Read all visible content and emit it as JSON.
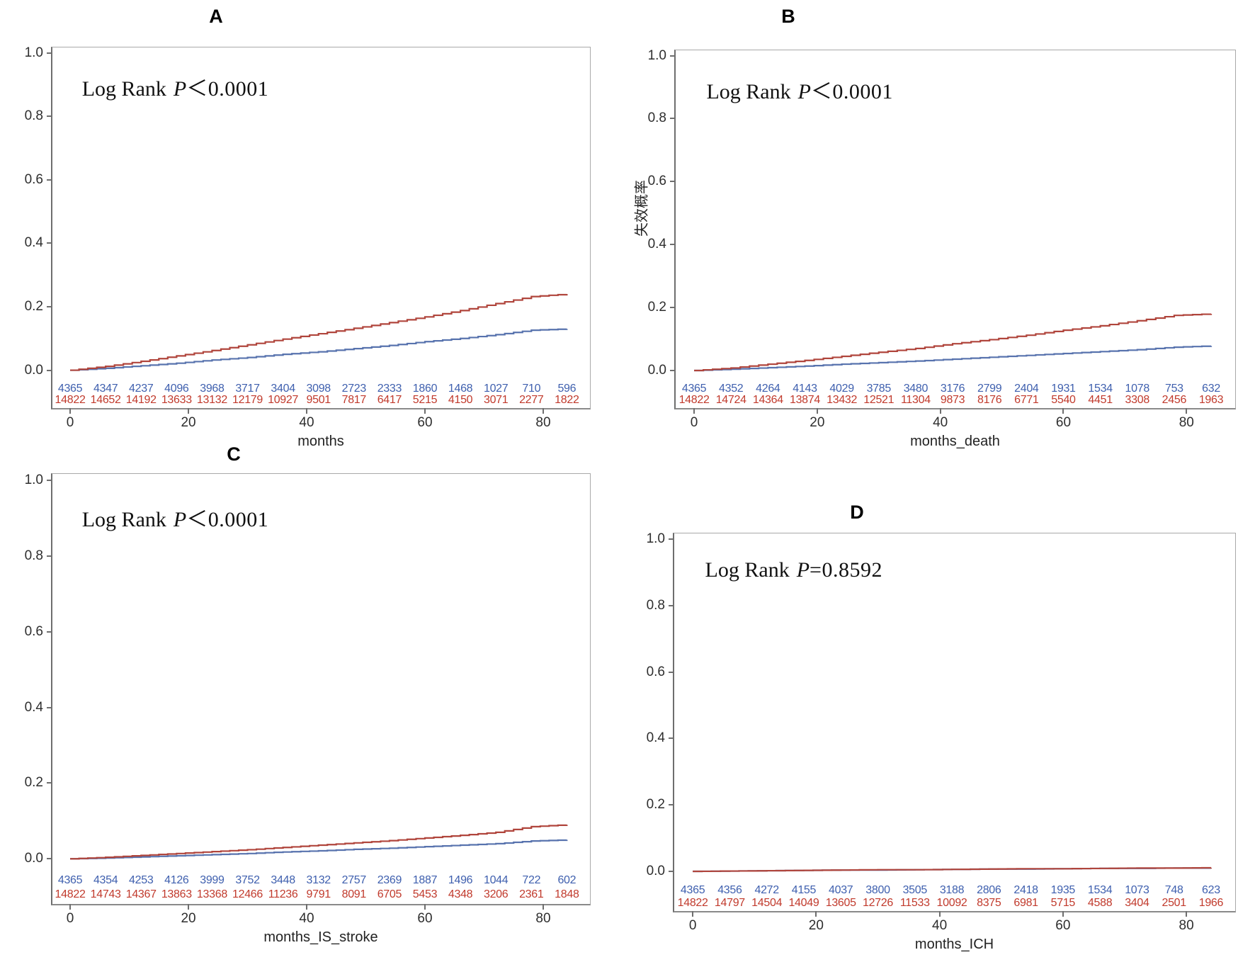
{
  "figure": {
    "background": "#ffffff",
    "colors": {
      "curve_blue": "#5873AE",
      "curve_red": "#B0453C",
      "risk_text_blue": "#3E5FAE",
      "risk_text_red": "#C13A2C",
      "frame_border": "#a9a9a9",
      "axis_line": "#6e6e6e",
      "tick_text": "#2e2e2e"
    }
  },
  "chart_data": [
    {
      "type": "step_line",
      "title": "A",
      "logrank_prefix": "Log Rank",
      "logrank_p": "P",
      "logrank_value": "＜0.0001",
      "xlabel": "months",
      "ylabel": "",
      "yticks": [
        "1.0",
        "0.8",
        "0.6",
        "0.4",
        "0.2",
        "0.0"
      ],
      "xticks": [
        0,
        20,
        40,
        60,
        80
      ],
      "ylim": [
        0,
        1
      ],
      "xlim": [
        0,
        88
      ],
      "grid": false,
      "legend": "none",
      "risk_months": [
        0,
        6,
        12,
        18,
        24,
        30,
        36,
        42,
        48,
        54,
        60,
        66,
        72,
        78,
        84
      ],
      "risk_table": {
        "blue": [
          "4365",
          "4347",
          "4237",
          "4096",
          "3968",
          "3717",
          "3404",
          "3098",
          "2723",
          "2333",
          "1860",
          "1468",
          "1027",
          "710",
          "596"
        ],
        "red": [
          "14822",
          "14652",
          "14192",
          "13633",
          "13132",
          "12179",
          "10927",
          "9501",
          "7817",
          "6417",
          "5215",
          "4150",
          "3071",
          "2277",
          "1822"
        ]
      },
      "series": [
        {
          "name": "blue-line",
          "color": "#5873AE",
          "values": [
            0,
            0.006,
            0.014,
            0.022,
            0.032,
            0.04,
            0.05,
            0.058,
            0.068,
            0.078,
            0.09,
            0.1,
            0.112,
            0.126,
            0.13
          ]
        },
        {
          "name": "red-line",
          "color": "#B0453C",
          "values": [
            0,
            0.012,
            0.028,
            0.045,
            0.062,
            0.08,
            0.098,
            0.115,
            0.132,
            0.15,
            0.168,
            0.188,
            0.21,
            0.232,
            0.24
          ]
        }
      ]
    },
    {
      "type": "step_line",
      "title": "B",
      "logrank_prefix": "Log Rank",
      "logrank_p": "P",
      "logrank_value": "＜0.0001",
      "xlabel": "months_death",
      "ylabel": "失效概率",
      "yticks": [
        "1.0",
        "0.8",
        "0.6",
        "0.4",
        "0.2",
        "0.0"
      ],
      "xticks": [
        0,
        20,
        40,
        60,
        80
      ],
      "ylim": [
        0,
        1
      ],
      "xlim": [
        0,
        88
      ],
      "grid": false,
      "legend": "none",
      "risk_months": [
        0,
        6,
        12,
        18,
        24,
        30,
        36,
        42,
        48,
        54,
        60,
        66,
        72,
        78,
        84
      ],
      "risk_table": {
        "blue": [
          "4365",
          "4352",
          "4264",
          "4143",
          "4029",
          "3785",
          "3480",
          "3176",
          "2799",
          "2404",
          "1931",
          "1534",
          "1078",
          "753",
          "632"
        ],
        "red": [
          "14822",
          "14724",
          "14364",
          "13874",
          "13432",
          "12521",
          "11304",
          "9873",
          "8176",
          "6771",
          "5540",
          "4451",
          "3308",
          "2456",
          "1963"
        ]
      },
      "series": [
        {
          "name": "blue-line",
          "color": "#5873AE",
          "values": [
            0,
            0.004,
            0.009,
            0.014,
            0.02,
            0.025,
            0.03,
            0.036,
            0.042,
            0.048,
            0.054,
            0.06,
            0.066,
            0.074,
            0.078
          ]
        },
        {
          "name": "red-line",
          "color": "#B0453C",
          "values": [
            0,
            0.008,
            0.02,
            0.032,
            0.045,
            0.058,
            0.07,
            0.085,
            0.098,
            0.112,
            0.128,
            0.142,
            0.158,
            0.175,
            0.18
          ]
        }
      ]
    },
    {
      "type": "step_line",
      "title": "C",
      "logrank_prefix": "Log Rank",
      "logrank_p": "P",
      "logrank_value": "＜0.0001",
      "xlabel": "months_IS_stroke",
      "ylabel": "",
      "yticks": [
        "1.0",
        "0.8",
        "0.6",
        "0.4",
        "0.2",
        "0.0"
      ],
      "xticks": [
        0,
        20,
        40,
        60,
        80
      ],
      "ylim": [
        0,
        1
      ],
      "xlim": [
        0,
        88
      ],
      "grid": false,
      "legend": "none",
      "risk_months": [
        0,
        6,
        12,
        18,
        24,
        30,
        36,
        42,
        48,
        54,
        60,
        66,
        72,
        78,
        84
      ],
      "risk_table": {
        "blue": [
          "4365",
          "4354",
          "4253",
          "4126",
          "3999",
          "3752",
          "3448",
          "3132",
          "2757",
          "2369",
          "1887",
          "1496",
          "1044",
          "722",
          "602"
        ],
        "red": [
          "14822",
          "14743",
          "14367",
          "13863",
          "13368",
          "12466",
          "11236",
          "9791",
          "8091",
          "6705",
          "5453",
          "4348",
          "3206",
          "2361",
          "1848"
        ]
      },
      "series": [
        {
          "name": "blue-line",
          "color": "#5873AE",
          "values": [
            0,
            0.002,
            0.005,
            0.008,
            0.011,
            0.014,
            0.018,
            0.021,
            0.025,
            0.028,
            0.032,
            0.036,
            0.04,
            0.047,
            0.05
          ]
        },
        {
          "name": "red-line",
          "color": "#B0453C",
          "values": [
            0,
            0.004,
            0.009,
            0.014,
            0.019,
            0.024,
            0.03,
            0.036,
            0.042,
            0.048,
            0.055,
            0.062,
            0.07,
            0.085,
            0.09
          ]
        }
      ]
    },
    {
      "type": "step_line",
      "title": "D",
      "logrank_prefix": "Log Rank",
      "logrank_p": "P",
      "logrank_value": "=0.8592",
      "xlabel": "months_ICH",
      "ylabel": "",
      "yticks": [
        "1.0",
        "0.8",
        "0.6",
        "0.4",
        "0.2",
        "0.0"
      ],
      "xticks": [
        0,
        20,
        40,
        60,
        80
      ],
      "ylim": [
        0,
        1
      ],
      "xlim": [
        0,
        88
      ],
      "grid": false,
      "legend": "none",
      "risk_months": [
        0,
        6,
        12,
        18,
        24,
        30,
        36,
        42,
        48,
        54,
        60,
        66,
        72,
        78,
        84
      ],
      "risk_table": {
        "blue": [
          "4365",
          "4356",
          "4272",
          "4155",
          "4037",
          "3800",
          "3505",
          "3188",
          "2806",
          "2418",
          "1935",
          "1534",
          "1073",
          "748",
          "623"
        ],
        "red": [
          "14822",
          "14797",
          "14504",
          "14049",
          "13605",
          "12726",
          "11533",
          "10092",
          "8375",
          "6981",
          "5715",
          "4588",
          "3404",
          "2501",
          "1966"
        ]
      },
      "series": [
        {
          "name": "blue-line",
          "color": "#5873AE",
          "values": [
            0,
            0.001,
            0.002,
            0.003,
            0.004,
            0.004,
            0.005,
            0.006,
            0.007,
            0.007,
            0.008,
            0.009,
            0.009,
            0.01,
            0.01
          ]
        },
        {
          "name": "red-line",
          "color": "#B0453C",
          "values": [
            0,
            0.001,
            0.002,
            0.003,
            0.004,
            0.005,
            0.005,
            0.006,
            0.007,
            0.008,
            0.008,
            0.009,
            0.01,
            0.01,
            0.011
          ]
        }
      ]
    }
  ]
}
